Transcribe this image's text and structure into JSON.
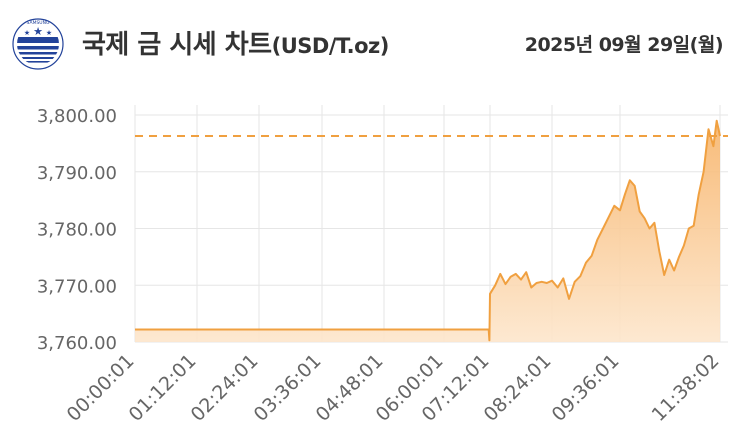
{
  "header": {
    "title": "국제 금 시세 차트",
    "unit": "(USD/T.oz)",
    "date": "2025년 09월 29일(월)",
    "logo_icon": "samsung-futures-globe-logo"
  },
  "colors": {
    "line": "#f0a040",
    "fill_top": "#f7b46a",
    "fill_bottom": "#fde6cc",
    "dash": "#f0a040",
    "grid": "#e6e6e6",
    "text": "#333333",
    "axis_text": "#666666"
  },
  "chart_data": {
    "type": "area",
    "title": "",
    "xlabel": "",
    "ylabel": "",
    "ylim": [
      3760,
      3800
    ],
    "y_ticks": [
      "3,800.00",
      "3,790.00",
      "3,780.00",
      "3,770.00",
      "3,760.00"
    ],
    "y_tick_values": [
      3800,
      3790,
      3780,
      3770,
      3760
    ],
    "x_ticks": [
      "00:00:01",
      "01:12:01",
      "02:24:01",
      "03:36:01",
      "04:48:01",
      "06:00:01",
      "07:12:01",
      "08:24:01",
      "09:36:01",
      "11:38:02"
    ],
    "reference_line": 3796.3,
    "grid": true,
    "series": [
      {
        "x": [
          "00:00:01",
          "01:12:01",
          "02:24:01",
          "03:36:01",
          "04:48:01",
          "06:00:01",
          "07:10:00",
          "07:11:00",
          "07:12:01",
          "07:18:00",
          "07:24:00",
          "07:30:00",
          "07:36:00",
          "07:42:00",
          "07:48:00",
          "07:54:00",
          "08:00:00",
          "08:06:00",
          "08:12:00",
          "08:18:00",
          "08:24:01",
          "08:30:00",
          "08:36:00",
          "08:42:00",
          "08:48:00",
          "08:54:00",
          "09:00:00",
          "09:06:00",
          "09:12:00",
          "09:18:00",
          "09:24:00",
          "09:30:00",
          "09:36:01",
          "09:42:00",
          "09:48:00",
          "09:54:00",
          "10:00:00",
          "10:06:00",
          "10:12:00",
          "10:18:00",
          "10:24:00",
          "10:30:00",
          "10:36:00",
          "10:42:00",
          "10:48:00",
          "10:54:00",
          "11:00:00",
          "11:06:00",
          "11:12:00",
          "11:18:00",
          "11:24:00",
          "11:30:00",
          "11:34:00",
          "11:38:02"
        ],
        "values": [
          3762.2,
          3762.2,
          3762.2,
          3762.2,
          3762.2,
          3762.2,
          3762.2,
          3760.3,
          3768.5,
          3770.0,
          3772.0,
          3770.2,
          3771.5,
          3772.0,
          3771.0,
          3772.3,
          3769.6,
          3770.4,
          3770.6,
          3770.4,
          3770.8,
          3769.6,
          3771.2,
          3767.6,
          3770.6,
          3771.6,
          3774.0,
          3775.2,
          3778.0,
          3780.0,
          3782.0,
          3784.0,
          3783.2,
          3786.0,
          3788.5,
          3787.5,
          3783.0,
          3781.8,
          3780.0,
          3781.0,
          3776.0,
          3771.8,
          3774.5,
          3772.6,
          3775.0,
          3777.0,
          3780.0,
          3780.5,
          3786.0,
          3790.0,
          3797.5,
          3794.5,
          3799.0,
          3796.3
        ]
      }
    ]
  }
}
